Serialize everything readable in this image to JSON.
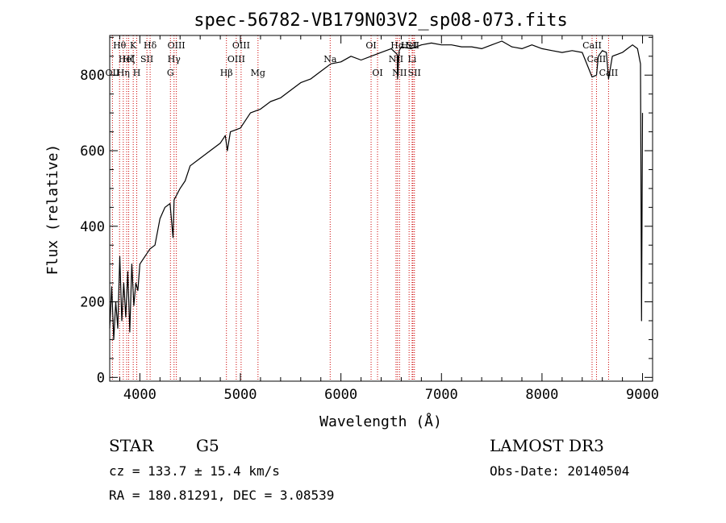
{
  "chart_data": {
    "type": "line",
    "title": "spec-56782-VB179N03V2_sp08-073.fits",
    "xlabel": "Wavelength (Å)",
    "ylabel": "Flux (relative)",
    "xlim": [
      3700,
      9100
    ],
    "ylim": [
      -10,
      905
    ],
    "x_ticks": [
      4000,
      5000,
      6000,
      7000,
      8000,
      9000
    ],
    "x_tick_labels": [
      "4000",
      "5000",
      "6000",
      "7000",
      "8000",
      "9000"
    ],
    "y_ticks": [
      0,
      200,
      400,
      600,
      800
    ],
    "y_tick_labels": [
      "0",
      "200",
      "400",
      "600",
      "800"
    ],
    "series": [
      {
        "name": "flux",
        "x": [
          3700,
          3720,
          3740,
          3760,
          3780,
          3800,
          3820,
          3840,
          3860,
          3880,
          3900,
          3920,
          3940,
          3960,
          3980,
          4000,
          4050,
          4100,
          4150,
          4200,
          4250,
          4300,
          4330,
          4340,
          4360,
          4400,
          4450,
          4500,
          4600,
          4700,
          4800,
          4850,
          4870,
          4900,
          5000,
          5100,
          5200,
          5300,
          5400,
          5500,
          5600,
          5700,
          5800,
          5900,
          6000,
          6100,
          6200,
          6300,
          6400,
          6500,
          6560,
          6563,
          6580,
          6600,
          6700,
          6800,
          6900,
          7000,
          7100,
          7200,
          7300,
          7400,
          7500,
          7600,
          7700,
          7800,
          7900,
          8000,
          8100,
          8200,
          8300,
          8400,
          8498,
          8542,
          8560,
          8600,
          8640,
          8662,
          8700,
          8750,
          8800,
          8850,
          8900,
          8950,
          8980,
          8990,
          9000
        ],
        "y": [
          130,
          240,
          100,
          200,
          130,
          320,
          150,
          250,
          160,
          280,
          120,
          300,
          190,
          250,
          230,
          300,
          320,
          340,
          350,
          420,
          450,
          460,
          370,
          470,
          480,
          500,
          520,
          560,
          580,
          600,
          620,
          640,
          600,
          650,
          660,
          700,
          710,
          730,
          740,
          760,
          780,
          790,
          810,
          830,
          835,
          850,
          840,
          850,
          860,
          870,
          855,
          790,
          865,
          875,
          870,
          880,
          885,
          880,
          880,
          875,
          875,
          870,
          880,
          890,
          875,
          870,
          880,
          870,
          865,
          860,
          865,
          860,
          795,
          800,
          850,
          865,
          860,
          790,
          850,
          855,
          860,
          870,
          880,
          870,
          830,
          150,
          700
        ]
      }
    ],
    "spectral_lines": [
      {
        "wavelength": 3727,
        "label": "OII",
        "row": 3
      },
      {
        "wavelength": 3798,
        "label": "Hθ",
        "row": 1
      },
      {
        "wavelength": 3835,
        "label": "Hη",
        "row": 3
      },
      {
        "wavelength": 3869,
        "label": "HeI",
        "row": 2
      },
      {
        "wavelength": 3889,
        "label": "Hζ",
        "row": 2
      },
      {
        "wavelength": 3934,
        "label": "K",
        "row": 1
      },
      {
        "wavelength": 3969,
        "label": "H",
        "row": 3
      },
      {
        "wavelength": 4070,
        "label": "SII",
        "row": 2
      },
      {
        "wavelength": 4102,
        "label": "Hδ",
        "row": 1
      },
      {
        "wavelength": 4304,
        "label": "G",
        "row": 3
      },
      {
        "wavelength": 4340,
        "label": "Hγ",
        "row": 2
      },
      {
        "wavelength": 4363,
        "label": "OIII",
        "row": 1
      },
      {
        "wavelength": 4861,
        "label": "Hβ",
        "row": 3
      },
      {
        "wavelength": 4959,
        "label": "OIII",
        "row": 2
      },
      {
        "wavelength": 5007,
        "label": "OIII",
        "row": 1
      },
      {
        "wavelength": 5175,
        "label": "Mg",
        "row": 3
      },
      {
        "wavelength": 5893,
        "label": "Na",
        "row": 2
      },
      {
        "wavelength": 6300,
        "label": "OI",
        "row": 1
      },
      {
        "wavelength": 6364,
        "label": "OI",
        "row": 3
      },
      {
        "wavelength": 6548,
        "label": "NII",
        "row": 2
      },
      {
        "wavelength": 6563,
        "label": "Hα",
        "row": 1
      },
      {
        "wavelength": 6583,
        "label": "NII",
        "row": 3
      },
      {
        "wavelength": 6678,
        "label": "HeI",
        "row": 1
      },
      {
        "wavelength": 6708,
        "label": "Li",
        "row": 2
      },
      {
        "wavelength": 6716,
        "label": "SII",
        "row": 1
      },
      {
        "wavelength": 6731,
        "label": "SII",
        "row": 3
      },
      {
        "wavelength": 8498,
        "label": "CaII",
        "row": 1
      },
      {
        "wavelength": 8542,
        "label": "CaII",
        "row": 2
      },
      {
        "wavelength": 8662,
        "label": "CaII",
        "row": 3
      }
    ]
  },
  "info": {
    "object_class": "STAR",
    "subclass": "G5",
    "survey": "LAMOST DR3",
    "cz": "cz = 133.7 ± 15.4 km/s",
    "obs_date": "Obs-Date: 20140504",
    "radec": "RA = 180.81291, DEC =   3.08539"
  },
  "colors": {
    "line_marker": "#cc0000",
    "spectrum": "#000000",
    "axes": "#000000",
    "background": "#ffffff"
  }
}
